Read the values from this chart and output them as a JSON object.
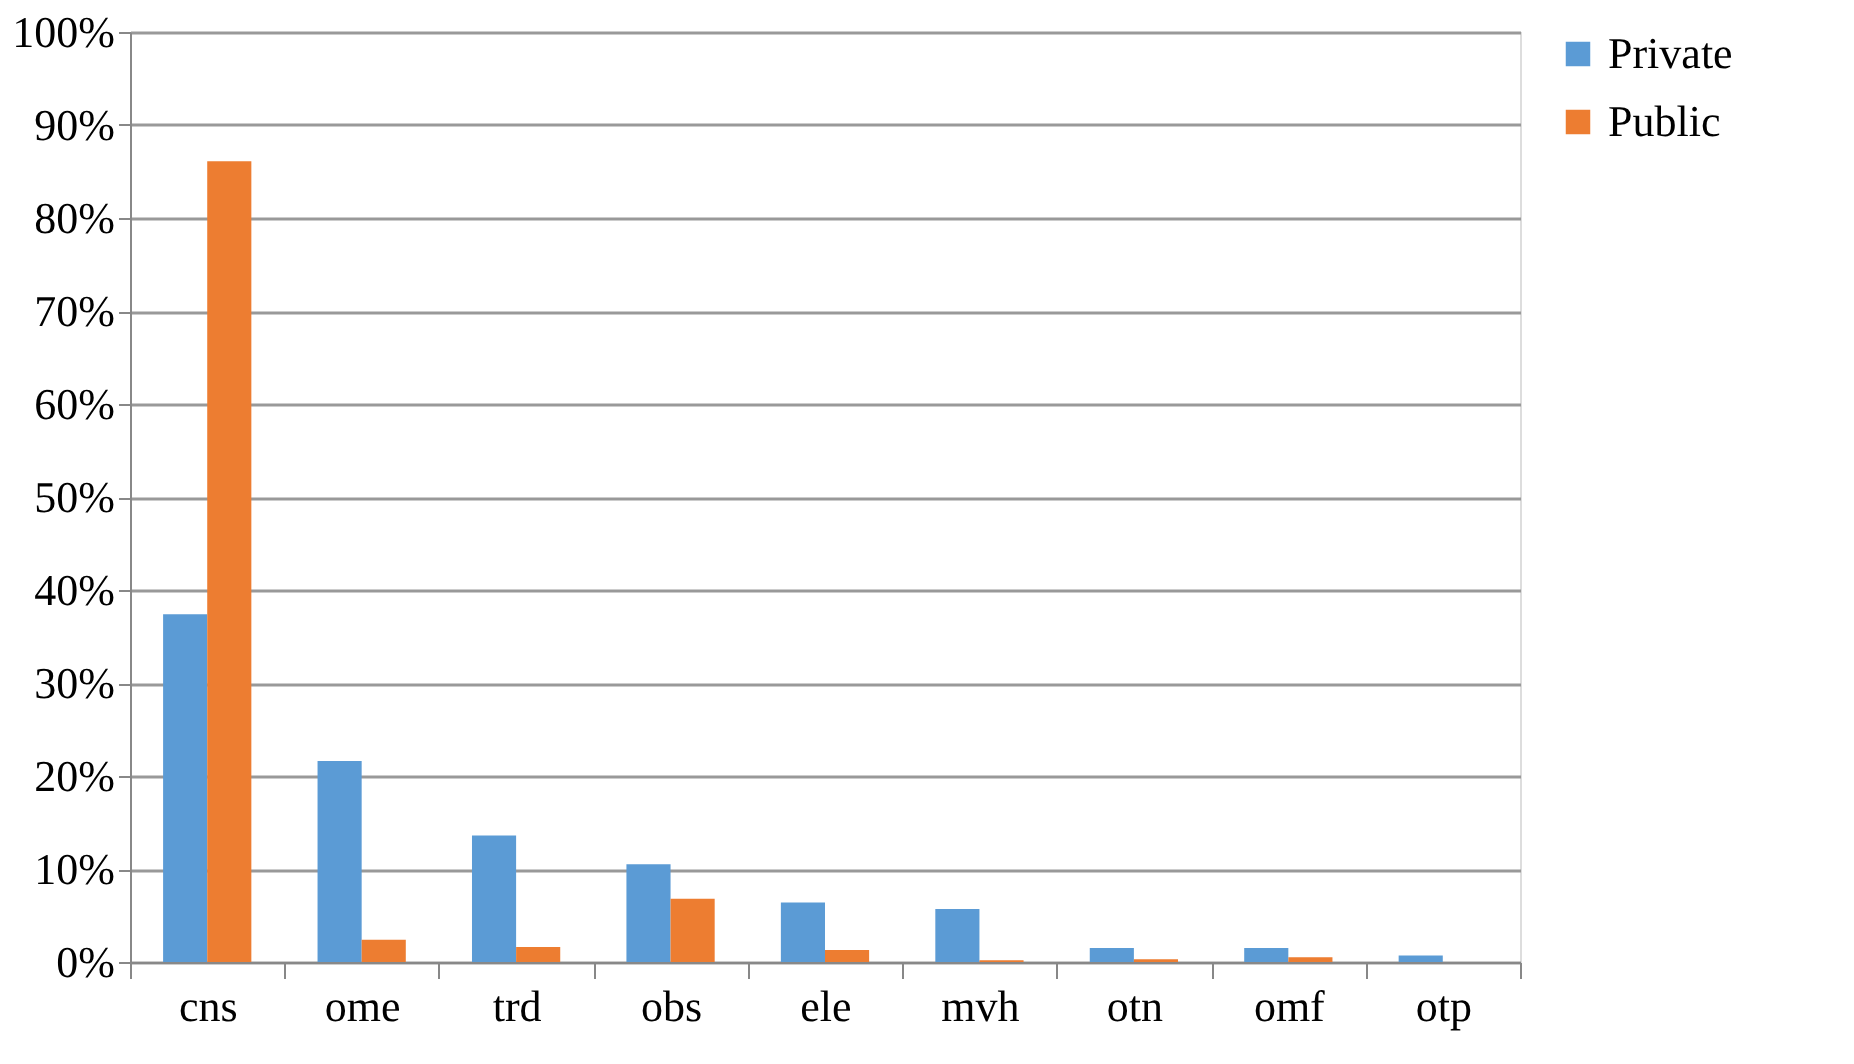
{
  "chart_data": {
    "type": "bar",
    "categories": [
      "cns",
      "ome",
      "trd",
      "obs",
      "ele",
      "mvh",
      "otn",
      "omf",
      "otp"
    ],
    "series": [
      {
        "name": "Private",
        "color": "#5b9bd5",
        "values": [
          37.4,
          21.6,
          13.6,
          10.5,
          6.4,
          5.7,
          1.5,
          1.5,
          0.7
        ]
      },
      {
        "name": "Public",
        "color": "#ed7d31",
        "values": [
          86.1,
          2.4,
          1.6,
          6.8,
          1.3,
          0.2,
          0.3,
          0.5,
          0.0
        ]
      }
    ],
    "ylim": [
      0,
      100
    ],
    "yticks": [
      {
        "value": 0,
        "label": "0%"
      },
      {
        "value": 10,
        "label": "10%"
      },
      {
        "value": 20,
        "label": "20%"
      },
      {
        "value": 30,
        "label": "30%"
      },
      {
        "value": 40,
        "label": "40%"
      },
      {
        "value": 50,
        "label": "50%"
      },
      {
        "value": 60,
        "label": "60%"
      },
      {
        "value": 70,
        "label": "70%"
      },
      {
        "value": 80,
        "label": "80%"
      },
      {
        "value": 90,
        "label": "90%"
      },
      {
        "value": 100,
        "label": "100%"
      }
    ],
    "grid": "y",
    "legend": "right"
  }
}
